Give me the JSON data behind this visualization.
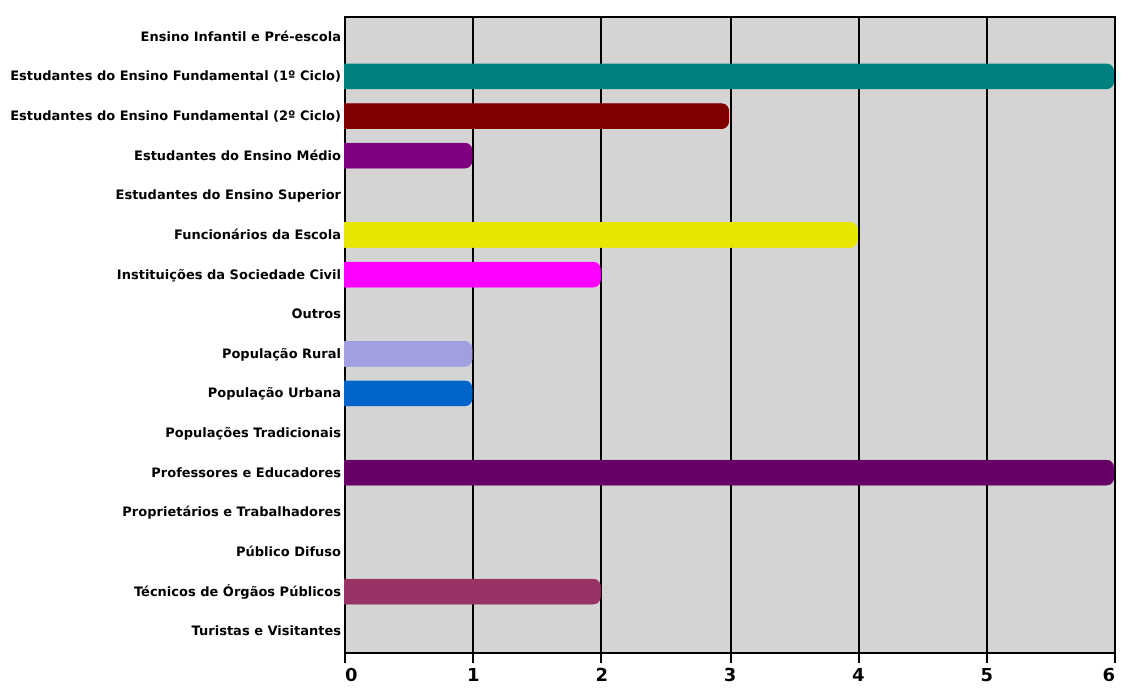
{
  "chart_data": {
    "type": "bar",
    "orientation": "horizontal",
    "categories": [
      "Ensino Infantil e Pré-escola",
      "Estudantes do Ensino Fundamental (1º Ciclo)",
      "Estudantes do Ensino Fundamental (2º Ciclo)",
      "Estudantes do Ensino Médio",
      "Estudantes do Ensino Superior",
      "Funcionários da Escola",
      "Instituições da Sociedade Civil",
      "Outros",
      "População Rural",
      "População Urbana",
      "Populações Tradicionais",
      "Professores e Educadores",
      "Proprietários e Trabalhadores",
      "Público Difuso",
      "Técnicos de Órgãos Públicos",
      "Turistas e Visitantes"
    ],
    "values": [
      0,
      6,
      3,
      1,
      0,
      4,
      2,
      0,
      1,
      1,
      0,
      6,
      0,
      0,
      2,
      0
    ],
    "colors": [
      "#1a1a8c",
      "#008080",
      "#800000",
      "#800080",
      "#339999",
      "#e6e600",
      "#ff00ff",
      "#000066",
      "#a0a0e0",
      "#0066cc",
      "#993366",
      "#660066",
      "#669999",
      "#999977",
      "#993366",
      "#666699"
    ],
    "xlim": [
      0,
      6
    ],
    "xticks": [
      0,
      1,
      2,
      3,
      4,
      5,
      6
    ],
    "grid": "x"
  }
}
